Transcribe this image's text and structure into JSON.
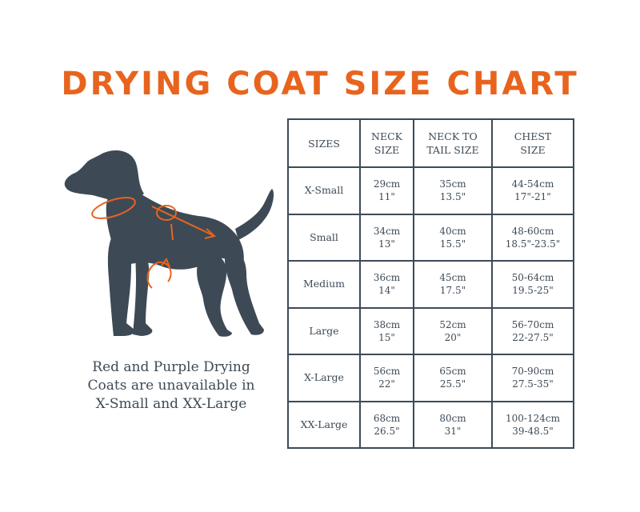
{
  "title": "DRYING COAT SIZE CHART",
  "caption": {
    "lines": [
      "Red and Purple Drying",
      "Coats are unavailable in",
      "X-Small and XX-Large"
    ]
  },
  "table": {
    "headers": [
      [
        "SIZES"
      ],
      [
        "NECK",
        "SIZE"
      ],
      [
        "NECK TO",
        "TAIL SIZE"
      ],
      [
        "CHEST",
        "SIZE"
      ]
    ],
    "rows": [
      {
        "size": "X-Small",
        "neck": [
          "29cm",
          "11\""
        ],
        "neck_to_tail": [
          "35cm",
          "13.5\""
        ],
        "chest": [
          "44-54cm",
          "17\"-21\""
        ]
      },
      {
        "size": "Small",
        "neck": [
          "34cm",
          "13\""
        ],
        "neck_to_tail": [
          "40cm",
          "15.5\""
        ],
        "chest": [
          "48-60cm",
          "18.5\"-23.5\""
        ]
      },
      {
        "size": "Medium",
        "neck": [
          "36cm",
          "14\""
        ],
        "neck_to_tail": [
          "45cm",
          "17.5\""
        ],
        "chest": [
          "50-64cm",
          "19.5-25\""
        ]
      },
      {
        "size": "Large",
        "neck": [
          "38cm",
          "15\""
        ],
        "neck_to_tail": [
          "52cm",
          "20\""
        ],
        "chest": [
          "56-70cm",
          "22-27.5\""
        ]
      },
      {
        "size": "X-Large",
        "neck": [
          "56cm",
          "22\""
        ],
        "neck_to_tail": [
          "65cm",
          "25.5\""
        ],
        "chest": [
          "70-90cm",
          "27.5-35\""
        ]
      },
      {
        "size": "XX-Large",
        "neck": [
          "68cm",
          "26.5\""
        ],
        "neck_to_tail": [
          "80cm",
          "31\""
        ],
        "chest": [
          "100-124cm",
          "39-48.5\""
        ]
      }
    ]
  },
  "illustration": {
    "icon": "dog-silhouette-icon",
    "silhouette_color": "#3d4a56",
    "arrow_color": "#e8641e"
  },
  "colors": {
    "accent": "#e8641e",
    "text": "#3d4a56"
  }
}
